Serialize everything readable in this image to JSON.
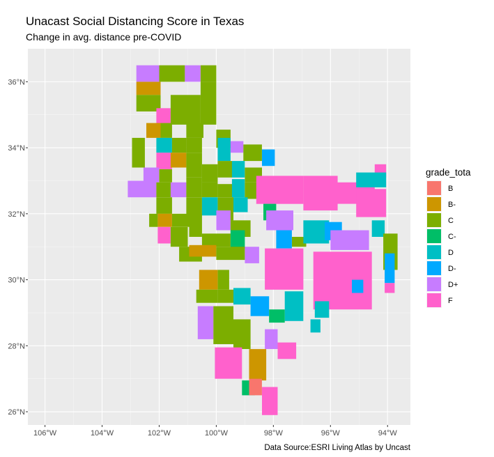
{
  "title": "Unacast Social Distancing Score in Texas",
  "subtitle": "Change in avg. distance pre-COVID",
  "caption": "Data Source:ESRI Living Atlas by Uncast",
  "chart_data": {
    "type": "choropleth",
    "xlim": [
      -106.6,
      -93.2
    ],
    "ylim": [
      25.6,
      37.0
    ],
    "x_ticks": [
      {
        "value": -106,
        "label": "106°W"
      },
      {
        "value": -104,
        "label": "104°W"
      },
      {
        "value": -102,
        "label": "102°W"
      },
      {
        "value": -100,
        "label": "100°W"
      },
      {
        "value": -98,
        "label": "98°W"
      },
      {
        "value": -96,
        "label": "96°W"
      },
      {
        "value": -94,
        "label": "94°W"
      }
    ],
    "y_ticks": [
      {
        "value": 26,
        "label": "26°N"
      },
      {
        "value": 28,
        "label": "28°N"
      },
      {
        "value": 30,
        "label": "30°N"
      },
      {
        "value": 32,
        "label": "32°N"
      },
      {
        "value": 34,
        "label": "34°N"
      },
      {
        "value": 36,
        "label": "36°N"
      }
    ],
    "grid": true,
    "legend": {
      "title": "grade_tota",
      "position": "right",
      "items": [
        {
          "label": "B",
          "color": "#F8766D"
        },
        {
          "label": "B-",
          "color": "#CD9600"
        },
        {
          "label": "C",
          "color": "#7CAE00"
        },
        {
          "label": "C-",
          "color": "#00BE67"
        },
        {
          "label": "D",
          "color": "#00BFC4"
        },
        {
          "label": "D-",
          "color": "#00A9FF"
        },
        {
          "label": "D+",
          "color": "#C77CFF"
        },
        {
          "label": "F",
          "color": "#FF61CC"
        }
      ]
    },
    "counties": [
      {
        "grade": "D+",
        "lon": [
          -102.8,
          -102.0
        ],
        "lat": [
          36.0,
          36.5
        ]
      },
      {
        "grade": "C",
        "lon": [
          -102.0,
          -101.1
        ],
        "lat": [
          36.0,
          36.5
        ]
      },
      {
        "grade": "D+",
        "lon": [
          -101.1,
          -100.55
        ],
        "lat": [
          36.0,
          36.5
        ]
      },
      {
        "grade": "C",
        "lon": [
          -100.55,
          -100.0
        ],
        "lat": [
          36.0,
          36.5
        ]
      },
      {
        "grade": "B-",
        "lon": [
          -102.8,
          -101.95
        ],
        "lat": [
          35.6,
          36.0
        ]
      },
      {
        "grade": "C",
        "lon": [
          -102.8,
          -101.95
        ],
        "lat": [
          35.1,
          35.6
        ]
      },
      {
        "grade": "C",
        "lon": [
          -101.6,
          -100.55
        ],
        "lat": [
          35.1,
          35.6
        ]
      },
      {
        "grade": "C",
        "lon": [
          -100.55,
          -100.0
        ],
        "lat": [
          35.1,
          36.0
        ]
      },
      {
        "grade": "F",
        "lon": [
          -102.1,
          -101.6
        ],
        "lat": [
          34.7,
          35.2
        ]
      },
      {
        "grade": "C",
        "lon": [
          -101.6,
          -100.55
        ],
        "lat": [
          34.7,
          35.1
        ]
      },
      {
        "grade": "C",
        "lon": [
          -100.55,
          -100.0
        ],
        "lat": [
          34.7,
          35.1
        ]
      },
      {
        "grade": "B-",
        "lon": [
          -102.45,
          -101.95
        ],
        "lat": [
          34.3,
          34.75
        ]
      },
      {
        "grade": "C",
        "lon": [
          -101.95,
          -101.55
        ],
        "lat": [
          34.3,
          34.75
        ]
      },
      {
        "grade": "C",
        "lon": [
          -101.05,
          -100.45
        ],
        "lat": [
          34.3,
          34.75
        ]
      },
      {
        "grade": "C",
        "lon": [
          -100.0,
          -99.5
        ],
        "lat": [
          34.0,
          34.55
        ]
      },
      {
        "grade": "C",
        "lon": [
          -102.95,
          -102.5
        ],
        "lat": [
          33.4,
          34.3
        ]
      },
      {
        "grade": "D",
        "lon": [
          -102.1,
          -101.55
        ],
        "lat": [
          33.85,
          34.3
        ]
      },
      {
        "grade": "C",
        "lon": [
          -101.55,
          -101.05
        ],
        "lat": [
          33.85,
          34.3
        ]
      },
      {
        "grade": "C",
        "lon": [
          -101.05,
          -100.5
        ],
        "lat": [
          33.85,
          34.3
        ]
      },
      {
        "grade": "D",
        "lon": [
          -99.95,
          -99.5
        ],
        "lat": [
          33.6,
          34.3
        ]
      },
      {
        "grade": "D+",
        "lon": [
          -99.5,
          -99.05
        ],
        "lat": [
          33.85,
          34.2
        ]
      },
      {
        "grade": "C",
        "lon": [
          -99.05,
          -98.4
        ],
        "lat": [
          33.6,
          34.1
        ]
      },
      {
        "grade": "D-",
        "lon": [
          -98.4,
          -97.95
        ],
        "lat": [
          33.45,
          33.95
        ]
      },
      {
        "grade": "F",
        "lon": [
          -102.1,
          -101.55
        ],
        "lat": [
          33.35,
          33.85
        ]
      },
      {
        "grade": "B-",
        "lon": [
          -101.6,
          -101.05
        ],
        "lat": [
          33.4,
          33.85
        ]
      },
      {
        "grade": "C",
        "lon": [
          -101.05,
          -100.5
        ],
        "lat": [
          33.1,
          33.85
        ]
      },
      {
        "grade": "C",
        "lon": [
          -100.5,
          -99.95
        ],
        "lat": [
          32.95,
          33.5
        ]
      },
      {
        "grade": "C",
        "lon": [
          -99.95,
          -99.45
        ],
        "lat": [
          33.1,
          33.6
        ]
      },
      {
        "grade": "D",
        "lon": [
          -99.45,
          -99.0
        ],
        "lat": [
          33.1,
          33.6
        ]
      },
      {
        "grade": "C",
        "lon": [
          -99.0,
          -98.4
        ],
        "lat": [
          32.95,
          33.4
        ]
      },
      {
        "grade": "D+",
        "lon": [
          -102.55,
          -102.0
        ],
        "lat": [
          32.95,
          33.4
        ]
      },
      {
        "grade": "C",
        "lon": [
          -102.0,
          -101.55
        ],
        "lat": [
          32.95,
          33.35
        ]
      },
      {
        "grade": "D+",
        "lon": [
          -103.1,
          -102.1
        ],
        "lat": [
          32.5,
          33.0
        ]
      },
      {
        "grade": "C",
        "lon": [
          -102.1,
          -101.55
        ],
        "lat": [
          32.5,
          32.95
        ]
      },
      {
        "grade": "D+",
        "lon": [
          -101.6,
          -101.05
        ],
        "lat": [
          32.5,
          32.95
        ]
      },
      {
        "grade": "C",
        "lon": [
          -101.05,
          -100.5
        ],
        "lat": [
          32.5,
          33.1
        ]
      },
      {
        "grade": "C",
        "lon": [
          -100.5,
          -99.95
        ],
        "lat": [
          32.5,
          32.95
        ]
      },
      {
        "grade": "C",
        "lon": [
          -99.95,
          -99.4
        ],
        "lat": [
          32.5,
          32.9
        ]
      },
      {
        "grade": "D",
        "lon": [
          -99.45,
          -99.0
        ],
        "lat": [
          32.5,
          33.05
        ]
      },
      {
        "grade": "C",
        "lon": [
          -99.0,
          -98.4
        ],
        "lat": [
          32.45,
          32.95
        ]
      },
      {
        "grade": "C",
        "lon": [
          -102.1,
          -101.55
        ],
        "lat": [
          32.0,
          32.5
        ]
      },
      {
        "grade": "C",
        "lon": [
          -101.05,
          -100.5
        ],
        "lat": [
          31.95,
          32.5
        ]
      },
      {
        "grade": "D",
        "lon": [
          -100.5,
          -99.95
        ],
        "lat": [
          31.95,
          32.5
        ]
      },
      {
        "grade": "C",
        "lon": [
          -99.95,
          -99.4
        ],
        "lat": [
          31.8,
          32.5
        ]
      },
      {
        "grade": "D",
        "lon": [
          -99.4,
          -98.9
        ],
        "lat": [
          32.05,
          32.5
        ]
      },
      {
        "grade": "C",
        "lon": [
          -102.35,
          -102.05
        ],
        "lat": [
          31.6,
          32.0
        ]
      },
      {
        "grade": "B-",
        "lon": [
          -102.05,
          -101.55
        ],
        "lat": [
          31.6,
          32.0
        ]
      },
      {
        "grade": "C",
        "lon": [
          -101.55,
          -100.95
        ],
        "lat": [
          31.6,
          32.0
        ]
      },
      {
        "grade": "C",
        "lon": [
          -100.95,
          -100.5
        ],
        "lat": [
          31.3,
          32.0
        ]
      },
      {
        "grade": "D+",
        "lon": [
          -100.0,
          -99.5
        ],
        "lat": [
          31.5,
          32.1
        ]
      },
      {
        "grade": "C",
        "lon": [
          -99.5,
          -98.8
        ],
        "lat": [
          31.3,
          31.8
        ]
      },
      {
        "grade": "F",
        "lon": [
          -102.05,
          -101.6
        ],
        "lat": [
          31.1,
          31.6
        ]
      },
      {
        "grade": "C",
        "lon": [
          -101.6,
          -101.0
        ],
        "lat": [
          31.0,
          31.6
        ]
      },
      {
        "grade": "C",
        "lon": [
          -100.5,
          -99.5
        ],
        "lat": [
          31.0,
          31.4
        ]
      },
      {
        "grade": "C-",
        "lon": [
          -99.5,
          -99.0
        ],
        "lat": [
          30.95,
          31.5
        ]
      },
      {
        "grade": "C",
        "lon": [
          -101.3,
          -100.5
        ],
        "lat": [
          30.55,
          31.0
        ]
      },
      {
        "grade": "B-",
        "lon": [
          -100.95,
          -100.0
        ],
        "lat": [
          30.7,
          31.05
        ]
      },
      {
        "grade": "C",
        "lon": [
          -100.0,
          -99.0
        ],
        "lat": [
          30.6,
          31.0
        ]
      },
      {
        "grade": "D+",
        "lon": [
          -99.0,
          -98.5
        ],
        "lat": [
          30.5,
          31.0
        ]
      },
      {
        "grade": "B-",
        "lon": [
          -100.6,
          -99.95
        ],
        "lat": [
          29.7,
          30.3
        ]
      },
      {
        "grade": "C",
        "lon": [
          -99.95,
          -99.55
        ],
        "lat": [
          29.7,
          30.3
        ]
      },
      {
        "grade": "C",
        "lon": [
          -100.7,
          -99.95
        ],
        "lat": [
          29.3,
          29.7
        ]
      },
      {
        "grade": "C",
        "lon": [
          -99.95,
          -99.4
        ],
        "lat": [
          29.3,
          29.7
        ]
      },
      {
        "grade": "D",
        "lon": [
          -99.4,
          -98.8
        ],
        "lat": [
          29.25,
          29.75
        ]
      },
      {
        "grade": "D-",
        "lon": [
          -98.8,
          -98.15
        ],
        "lat": [
          28.9,
          29.5
        ]
      },
      {
        "grade": "D+",
        "lon": [
          -100.65,
          -100.1
        ],
        "lat": [
          28.2,
          29.2
        ]
      },
      {
        "grade": "C",
        "lon": [
          -100.1,
          -99.4
        ],
        "lat": [
          28.05,
          29.2
        ]
      },
      {
        "grade": "C",
        "lon": [
          -99.4,
          -98.8
        ],
        "lat": [
          27.9,
          28.8
        ]
      },
      {
        "grade": "D+",
        "lon": [
          -98.3,
          -97.85
        ],
        "lat": [
          27.9,
          28.5
        ]
      },
      {
        "grade": "F",
        "lon": [
          -100.05,
          -99.1
        ],
        "lat": [
          27.0,
          27.95
        ]
      },
      {
        "grade": "B-",
        "lon": [
          -98.85,
          -98.25
        ],
        "lat": [
          26.95,
          27.9
        ]
      },
      {
        "grade": "C-",
        "lon": [
          -99.1,
          -98.65
        ],
        "lat": [
          26.5,
          26.95
        ]
      },
      {
        "grade": "B",
        "lon": [
          -98.85,
          -98.4
        ],
        "lat": [
          26.5,
          27.0
        ]
      },
      {
        "grade": "F",
        "lon": [
          -98.4,
          -97.85
        ],
        "lat": [
          25.9,
          26.75
        ]
      },
      {
        "grade": "F",
        "lon": [
          -98.6,
          -96.95
        ],
        "lat": [
          32.3,
          33.15
        ]
      },
      {
        "grade": "F",
        "lon": [
          -96.95,
          -95.75
        ],
        "lat": [
          32.1,
          33.15
        ]
      },
      {
        "grade": "F",
        "lon": [
          -95.75,
          -94.45
        ],
        "lat": [
          32.3,
          32.95
        ]
      },
      {
        "grade": "F",
        "lon": [
          -94.45,
          -94.05
        ],
        "lat": [
          33.1,
          33.5
        ]
      },
      {
        "grade": "D",
        "lon": [
          -95.1,
          -94.05
        ],
        "lat": [
          32.8,
          33.25
        ]
      },
      {
        "grade": "F",
        "lon": [
          -95.1,
          -94.05
        ],
        "lat": [
          31.9,
          32.75
        ]
      },
      {
        "grade": "D",
        "lon": [
          -94.55,
          -94.1
        ],
        "lat": [
          31.3,
          31.8
        ]
      },
      {
        "grade": "C",
        "lon": [
          -94.15,
          -93.65
        ],
        "lat": [
          30.3,
          31.4
        ]
      },
      {
        "grade": "D-",
        "lon": [
          -94.1,
          -93.75
        ],
        "lat": [
          29.9,
          30.8
        ]
      },
      {
        "grade": "F",
        "lon": [
          -94.1,
          -93.75
        ],
        "lat": [
          29.6,
          29.9
        ]
      },
      {
        "grade": "C-",
        "lon": [
          -98.35,
          -97.9
        ],
        "lat": [
          31.8,
          32.3
        ]
      },
      {
        "grade": "D+",
        "lon": [
          -98.25,
          -97.3
        ],
        "lat": [
          31.5,
          32.1
        ]
      },
      {
        "grade": "D-",
        "lon": [
          -97.9,
          -97.35
        ],
        "lat": [
          30.95,
          31.5
        ]
      },
      {
        "grade": "C",
        "lon": [
          -97.35,
          -96.85
        ],
        "lat": [
          31.0,
          31.3
        ]
      },
      {
        "grade": "D",
        "lon": [
          -96.95,
          -96.05
        ],
        "lat": [
          31.1,
          31.8
        ]
      },
      {
        "grade": "D-",
        "lon": [
          -96.2,
          -95.6
        ],
        "lat": [
          31.2,
          31.75
        ]
      },
      {
        "grade": "D+",
        "lon": [
          -96.0,
          -94.65
        ],
        "lat": [
          30.9,
          31.5
        ]
      },
      {
        "grade": "F",
        "lon": [
          -98.3,
          -96.95
        ],
        "lat": [
          29.7,
          30.95
        ]
      },
      {
        "grade": "F",
        "lon": [
          -96.6,
          -94.55
        ],
        "lat": [
          29.1,
          30.85
        ]
      },
      {
        "grade": "D-",
        "lon": [
          -95.25,
          -94.85
        ],
        "lat": [
          29.6,
          30.0
        ]
      },
      {
        "grade": "D",
        "lon": [
          -97.6,
          -96.95
        ],
        "lat": [
          28.75,
          29.65
        ]
      },
      {
        "grade": "D",
        "lon": [
          -96.55,
          -96.05
        ],
        "lat": [
          28.85,
          29.35
        ]
      },
      {
        "grade": "D",
        "lon": [
          -96.7,
          -96.35
        ],
        "lat": [
          28.4,
          28.8
        ]
      },
      {
        "grade": "C-",
        "lon": [
          -98.15,
          -97.6
        ],
        "lat": [
          28.7,
          29.1
        ]
      },
      {
        "grade": "F",
        "lon": [
          -97.85,
          -97.2
        ],
        "lat": [
          27.6,
          28.1
        ]
      }
    ]
  }
}
